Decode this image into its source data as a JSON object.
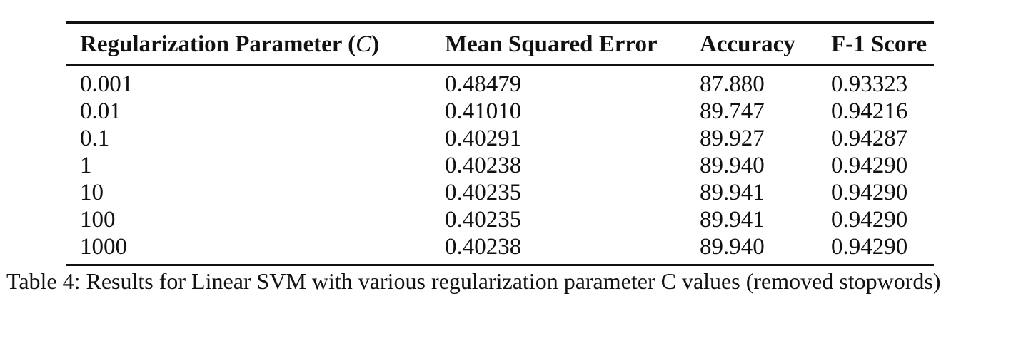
{
  "table": {
    "headers": {
      "regularization_prefix": "Regularization Parameter (",
      "regularization_symbol": "C",
      "regularization_suffix": ")",
      "mse": "Mean Squared Error",
      "accuracy": "Accuracy",
      "f1": "F-1 Score"
    },
    "rows": [
      {
        "c": "0.001",
        "mse": "0.48479",
        "accuracy": "87.880",
        "f1": "0.93323"
      },
      {
        "c": "0.01",
        "mse": "0.41010",
        "accuracy": "89.747",
        "f1": "0.94216"
      },
      {
        "c": "0.1",
        "mse": "0.40291",
        "accuracy": "89.927",
        "f1": "0.94287"
      },
      {
        "c": "1",
        "mse": "0.40238",
        "accuracy": "89.940",
        "f1": "0.94290"
      },
      {
        "c": "10",
        "mse": "0.40235",
        "accuracy": "89.941",
        "f1": "0.94290"
      },
      {
        "c": "100",
        "mse": "0.40235",
        "accuracy": "89.941",
        "f1": "0.94290"
      },
      {
        "c": "1000",
        "mse": "0.40238",
        "accuracy": "89.940",
        "f1": "0.94290"
      }
    ]
  },
  "caption": "Table 4: Results for Linear SVM with various regularization parameter C values (removed stopwords)"
}
